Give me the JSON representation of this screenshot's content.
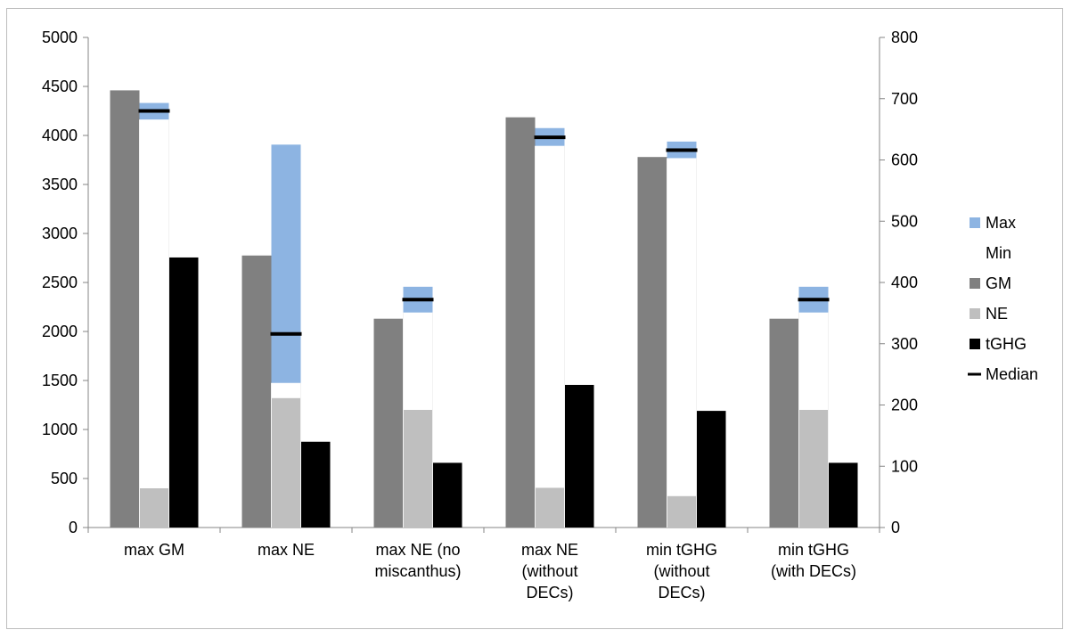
{
  "chart_data": {
    "type": "bar",
    "categories": [
      [
        "max GM"
      ],
      [
        "max NE"
      ],
      [
        "max NE (no",
        "miscanthus)"
      ],
      [
        "max NE",
        "(without",
        "DECs)"
      ],
      [
        "min tGHG",
        "(without",
        "DECs)"
      ],
      [
        "min tGHG",
        "(with DECs)"
      ]
    ],
    "left_axis": {
      "ylim": [
        0,
        5000
      ],
      "ticks": [
        "0",
        "500",
        "1000",
        "1500",
        "2000",
        "2500",
        "3000",
        "3500",
        "4000",
        "4500",
        "5000"
      ]
    },
    "right_axis": {
      "ylim": [
        0,
        800
      ],
      "ticks": [
        "0",
        "100",
        "200",
        "300",
        "400",
        "500",
        "600",
        "700",
        "800"
      ]
    },
    "series": [
      {
        "name": "GM",
        "axis": "left",
        "color": "#808080",
        "values": [
          4460,
          2775,
          2130,
          4185,
          3780,
          2130
        ]
      },
      {
        "name": "NE",
        "axis": "left",
        "color": "#bfbfbf",
        "values": [
          400,
          1320,
          1200,
          405,
          320,
          1200
        ]
      },
      {
        "name": "tGHG",
        "axis": "left",
        "color": "#000000",
        "values": [
          2755,
          875,
          660,
          1455,
          1190,
          660
        ]
      }
    ],
    "range": {
      "axis": "right",
      "max_name": "Max",
      "min_name": "Min",
      "median_name": "Median",
      "max_color": "#8db4e2",
      "median_color": "#000000",
      "max": [
        693,
        625,
        393,
        652,
        630,
        393
      ],
      "min": [
        666,
        236,
        351,
        623,
        603,
        351
      ],
      "median": [
        680,
        316,
        372,
        637,
        616,
        372
      ]
    },
    "legend": {
      "placement": "right",
      "entries": [
        {
          "name": "Max",
          "swatch": "box",
          "color": "#8db4e2"
        },
        {
          "name": "Min",
          "swatch": "none",
          "color": "#ffffff"
        },
        {
          "name": "GM",
          "swatch": "box",
          "color": "#808080"
        },
        {
          "name": "NE",
          "swatch": "box",
          "color": "#bfbfbf"
        },
        {
          "name": "tGHG",
          "swatch": "box",
          "color": "#000000"
        },
        {
          "name": "Median",
          "swatch": "line",
          "color": "#000000"
        }
      ]
    }
  }
}
